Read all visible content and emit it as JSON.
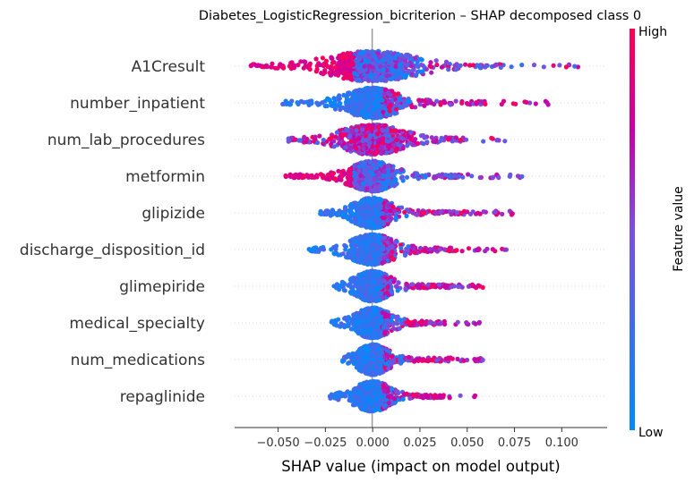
{
  "chart_data": {
    "type": "scatter",
    "title": "Diabetes_LogisticRegression_bicriterion – SHAP decomposed class 0",
    "xlabel": "SHAP value (impact on model output)",
    "xlim": [
      -0.073,
      0.124
    ],
    "x_ticks": [
      "−0.050",
      "−0.025",
      "0.000",
      "0.025",
      "0.050",
      "0.075",
      "0.100"
    ],
    "x_tick_values": [
      -0.05,
      -0.025,
      0,
      0.025,
      0.05,
      0.075,
      0.1
    ],
    "grid": false,
    "colorbar": {
      "label": "Feature value",
      "high": "High",
      "low": "Low",
      "high_color": "#ff0052",
      "low_color": "#008bfb"
    },
    "features": [
      {
        "name": "A1Cresult",
        "min": -0.065,
        "max": 0.114,
        "low_side": "high",
        "dense_spread": 0.05
      },
      {
        "name": "number_inpatient",
        "min": -0.048,
        "max": 0.094,
        "low_side": "low",
        "dense_spread": 0.03
      },
      {
        "name": "num_lab_procedures",
        "min": -0.045,
        "max": 0.081,
        "low_side": "mixed",
        "dense_spread": 0.035
      },
      {
        "name": "metformin",
        "min": -0.046,
        "max": 0.081,
        "low_side": "high",
        "dense_spread": 0.025
      },
      {
        "name": "glipizide",
        "min": -0.028,
        "max": 0.074,
        "low_side": "low",
        "dense_spread": 0.022
      },
      {
        "name": "discharge_disposition_id",
        "min": -0.035,
        "max": 0.071,
        "low_side": "low",
        "dense_spread": 0.025
      },
      {
        "name": "glimepiride",
        "min": -0.021,
        "max": 0.061,
        "low_side": "low",
        "dense_spread": 0.02
      },
      {
        "name": "medical_specialty",
        "min": -0.022,
        "max": 0.058,
        "low_side": "low",
        "dense_spread": 0.02
      },
      {
        "name": "num_medications",
        "min": -0.016,
        "max": 0.06,
        "low_side": "low",
        "dense_spread": 0.018
      },
      {
        "name": "repaglinide",
        "min": -0.023,
        "max": 0.058,
        "low_side": "low",
        "dense_spread": 0.02
      }
    ]
  }
}
